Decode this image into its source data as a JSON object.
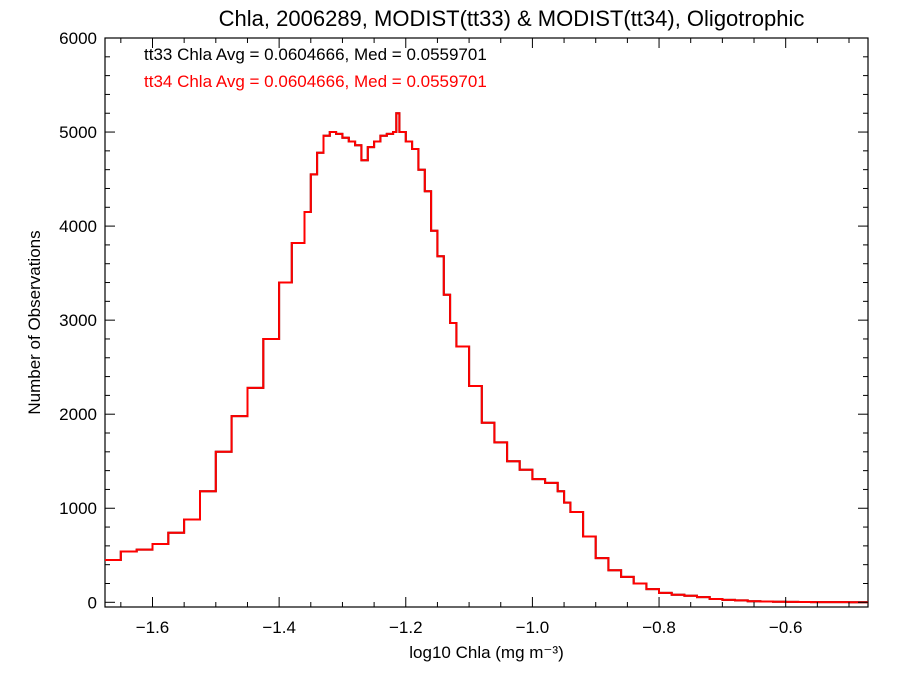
{
  "chart_data": {
    "type": "line",
    "drawstyle": "steps",
    "title": "Chla, 2006289, MODIST(tt33) & MODIST(tt34), Oligotrophic",
    "xlabel": "log10 Chla (mg m⁻³)",
    "ylabel": "Number of Observations",
    "xlim": [
      -1.675,
      -0.47
    ],
    "ylim": [
      -50,
      6000
    ],
    "xticks": [
      -1.6,
      -1.4,
      -1.2,
      -1.0,
      -0.8,
      -0.6
    ],
    "xtick_labels": [
      "−1.6",
      "−1.4",
      "−1.2",
      "−1.0",
      "−0.8",
      "−0.6"
    ],
    "yticks": [
      0,
      1000,
      2000,
      3000,
      4000,
      5000,
      6000
    ],
    "ytick_labels": [
      "0",
      "1000",
      "2000",
      "3000",
      "4000",
      "5000",
      "6000"
    ],
    "grid": false,
    "annotations": [
      {
        "text": "tt33 Chla Avg = 0.0604666, Med = 0.0559701",
        "color": "#000000"
      },
      {
        "text": "tt34 Chla Avg = 0.0604666, Med = 0.0559701",
        "color": "#ff0000"
      }
    ],
    "series": [
      {
        "color": "#000000",
        "x": [
          -1.675,
          -1.65,
          -1.625,
          -1.6,
          -1.575,
          -1.55,
          -1.525,
          -1.5,
          -1.475,
          -1.45,
          -1.425,
          -1.4,
          -1.38,
          -1.36,
          -1.35,
          -1.34,
          -1.33,
          -1.32,
          -1.31,
          -1.3,
          -1.29,
          -1.28,
          -1.27,
          -1.26,
          -1.25,
          -1.24,
          -1.23,
          -1.22,
          -1.215,
          -1.21,
          -1.2,
          -1.19,
          -1.18,
          -1.17,
          -1.16,
          -1.15,
          -1.14,
          -1.13,
          -1.12,
          -1.1,
          -1.08,
          -1.06,
          -1.04,
          -1.02,
          -1.0,
          -0.98,
          -0.96,
          -0.95,
          -0.94,
          -0.92,
          -0.9,
          -0.88,
          -0.86,
          -0.84,
          -0.82,
          -0.8,
          -0.78,
          -0.76,
          -0.74,
          -0.72,
          -0.7,
          -0.68,
          -0.66,
          -0.64,
          -0.62,
          -0.6,
          -0.58,
          -0.56,
          -0.54,
          -0.52,
          -0.5,
          -0.47
        ],
        "y": [
          450,
          540,
          560,
          620,
          740,
          880,
          1180,
          1600,
          1980,
          2280,
          2800,
          3400,
          3820,
          4150,
          4550,
          4780,
          4960,
          5000,
          4980,
          4940,
          4900,
          4860,
          4700,
          4840,
          4900,
          4960,
          4980,
          5000,
          5200,
          5000,
          4900,
          4820,
          4600,
          4370,
          3950,
          3680,
          3270,
          2970,
          2720,
          2300,
          1910,
          1700,
          1500,
          1410,
          1310,
          1270,
          1180,
          1060,
          960,
          700,
          470,
          340,
          270,
          200,
          140,
          100,
          80,
          70,
          55,
          35,
          25,
          20,
          12,
          8,
          5,
          4,
          3,
          2,
          2,
          2,
          1,
          1
        ]
      },
      {
        "color": "#ff0000",
        "x": [
          -1.675,
          -1.65,
          -1.625,
          -1.6,
          -1.575,
          -1.55,
          -1.525,
          -1.5,
          -1.475,
          -1.45,
          -1.425,
          -1.4,
          -1.38,
          -1.36,
          -1.35,
          -1.34,
          -1.33,
          -1.32,
          -1.31,
          -1.3,
          -1.29,
          -1.28,
          -1.27,
          -1.26,
          -1.25,
          -1.24,
          -1.23,
          -1.22,
          -1.215,
          -1.21,
          -1.2,
          -1.19,
          -1.18,
          -1.17,
          -1.16,
          -1.15,
          -1.14,
          -1.13,
          -1.12,
          -1.1,
          -1.08,
          -1.06,
          -1.04,
          -1.02,
          -1.0,
          -0.98,
          -0.96,
          -0.95,
          -0.94,
          -0.92,
          -0.9,
          -0.88,
          -0.86,
          -0.84,
          -0.82,
          -0.8,
          -0.78,
          -0.76,
          -0.74,
          -0.72,
          -0.7,
          -0.68,
          -0.66,
          -0.64,
          -0.62,
          -0.6,
          -0.58,
          -0.56,
          -0.54,
          -0.52,
          -0.5,
          -0.47
        ],
        "y": [
          450,
          540,
          560,
          620,
          740,
          880,
          1180,
          1600,
          1980,
          2280,
          2800,
          3400,
          3820,
          4150,
          4550,
          4780,
          4960,
          5000,
          4980,
          4940,
          4900,
          4860,
          4700,
          4840,
          4900,
          4960,
          4980,
          5000,
          5200,
          5000,
          4900,
          4820,
          4600,
          4370,
          3950,
          3680,
          3270,
          2970,
          2720,
          2300,
          1910,
          1700,
          1500,
          1410,
          1310,
          1270,
          1180,
          1060,
          960,
          700,
          470,
          340,
          270,
          200,
          140,
          100,
          80,
          70,
          55,
          35,
          25,
          20,
          12,
          8,
          5,
          4,
          3,
          2,
          2,
          2,
          1,
          1
        ]
      }
    ]
  }
}
